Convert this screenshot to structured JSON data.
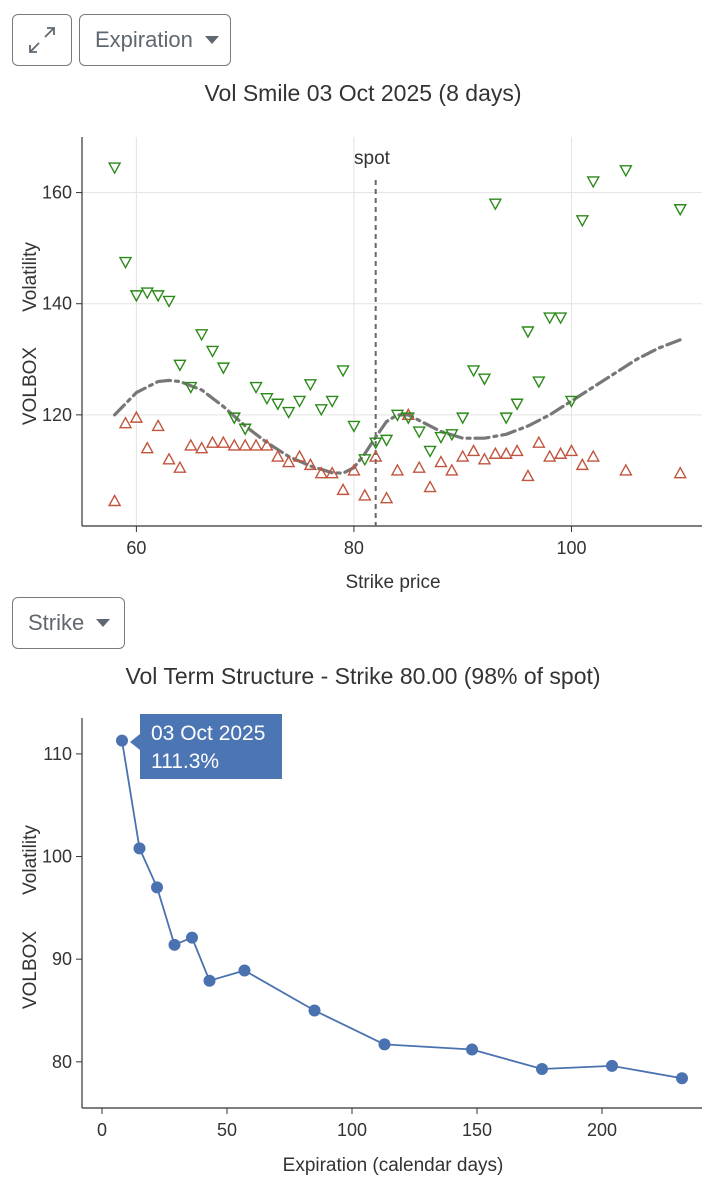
{
  "controls": {
    "expand_icon": "expand-arrows-icon",
    "expiration_label": "Expiration",
    "strike_label": "Strike"
  },
  "colors": {
    "bid": "#2c8a1a",
    "ask": "#c0553e",
    "fit": "#777777",
    "term": "#4a72b0",
    "spot": "#666666",
    "tooltip": "#4c75b4"
  },
  "chart_data": [
    {
      "type": "scatter",
      "title": "Vol Smile 03 Oct 2025 (8 days)",
      "xlabel": "Strike price",
      "ylabel": "VOLBOX  Volatility",
      "ylabel_left": "VOLBOX",
      "ylabel_right": "Volatility",
      "xlim": [
        55,
        112
      ],
      "ylim": [
        100,
        170
      ],
      "xticks": [
        60,
        80,
        100
      ],
      "yticks": [
        120,
        140,
        160
      ],
      "grid": true,
      "spot": {
        "label": "spot",
        "x": 82
      },
      "series": [
        {
          "marker": "triangle-down",
          "x": [
            58,
            59,
            60,
            61,
            62,
            63,
            64,
            65,
            66,
            67,
            68,
            69,
            70,
            71,
            72,
            73,
            74,
            75,
            76,
            77,
            78,
            79,
            80,
            81,
            82,
            83,
            84,
            85,
            86,
            87,
            88,
            89,
            90,
            91,
            92,
            93,
            94,
            95,
            96,
            97,
            98,
            99,
            100,
            101,
            102,
            105,
            110
          ],
          "y": [
            164.5,
            147.5,
            141.5,
            142,
            141.5,
            140.5,
            129,
            125,
            134.5,
            131.5,
            128.5,
            119.5,
            117.5,
            125,
            123,
            122,
            120.5,
            122.5,
            125.5,
            121,
            122.5,
            128,
            118,
            112,
            115,
            115.5,
            120,
            119.5,
            117,
            113.5,
            116,
            116.5,
            119.5,
            128,
            126.5,
            158,
            119.5,
            122,
            135,
            126,
            137.5,
            137.5,
            122.5,
            155,
            162,
            164,
            157
          ]
        },
        {
          "marker": "triangle-up",
          "x": [
            58,
            59,
            60,
            61,
            62,
            63,
            64,
            65,
            66,
            67,
            68,
            69,
            70,
            71,
            72,
            73,
            74,
            75,
            76,
            77,
            78,
            79,
            80,
            81,
            82,
            83,
            84,
            85,
            86,
            87,
            88,
            89,
            90,
            91,
            92,
            93,
            94,
            95,
            96,
            97,
            98,
            99,
            100,
            101,
            102,
            105,
            110
          ],
          "y": [
            104.5,
            118.5,
            119.5,
            114,
            118,
            112,
            110.5,
            114.5,
            114,
            115,
            115,
            114.5,
            114.5,
            114.5,
            114.5,
            112.5,
            111.5,
            112.5,
            111,
            109.5,
            109.5,
            106.5,
            110,
            105.5,
            112.5,
            105,
            110,
            120,
            110.5,
            107,
            111.5,
            110,
            112.5,
            113.5,
            112,
            113,
            113,
            113.5,
            109,
            115,
            112.5,
            113,
            113.5,
            111,
            112.5,
            110,
            109.5
          ]
        },
        {
          "type": "line",
          "style": "dash-dot",
          "x": [
            58,
            60,
            62,
            63,
            64,
            66,
            68,
            70,
            72,
            74,
            76,
            78,
            79,
            80,
            81,
            82,
            83,
            84,
            85,
            86,
            88,
            90,
            92,
            94,
            96,
            98,
            100,
            102,
            104,
            106,
            108,
            110
          ],
          "y": [
            120,
            124,
            126,
            126.2,
            126,
            124.5,
            121.5,
            118,
            115,
            112.5,
            110.8,
            109.6,
            109.5,
            110.5,
            113,
            116,
            118.8,
            120,
            120,
            119,
            117,
            115.8,
            115.8,
            116.5,
            118,
            120,
            122.5,
            125,
            127.5,
            130,
            132,
            133.5
          ]
        }
      ]
    },
    {
      "type": "line",
      "title": "Vol Term Structure - Strike 80.00 (98% of spot)",
      "xlabel": "Expiration (calendar days)",
      "ylabel": "VOLBOX  Volatility",
      "ylabel_left": "VOLBOX",
      "ylabel_right": "Volatility",
      "xlim": [
        -8,
        240
      ],
      "ylim": [
        75.5,
        113.5
      ],
      "xticks": [
        0,
        50,
        100,
        150,
        200
      ],
      "yticks": [
        80,
        90,
        100,
        110
      ],
      "grid": false,
      "series": [
        {
          "x": [
            8,
            15,
            22,
            29,
            36,
            43,
            57,
            85,
            113,
            148,
            176,
            204,
            232
          ],
          "y": [
            111.3,
            100.8,
            97,
            91.4,
            92.1,
            87.9,
            88.9,
            85,
            81.7,
            81.2,
            79.3,
            79.6,
            78.4
          ]
        }
      ],
      "tooltip": {
        "date": "03 Oct 2025",
        "value": "111.3%"
      }
    }
  ]
}
